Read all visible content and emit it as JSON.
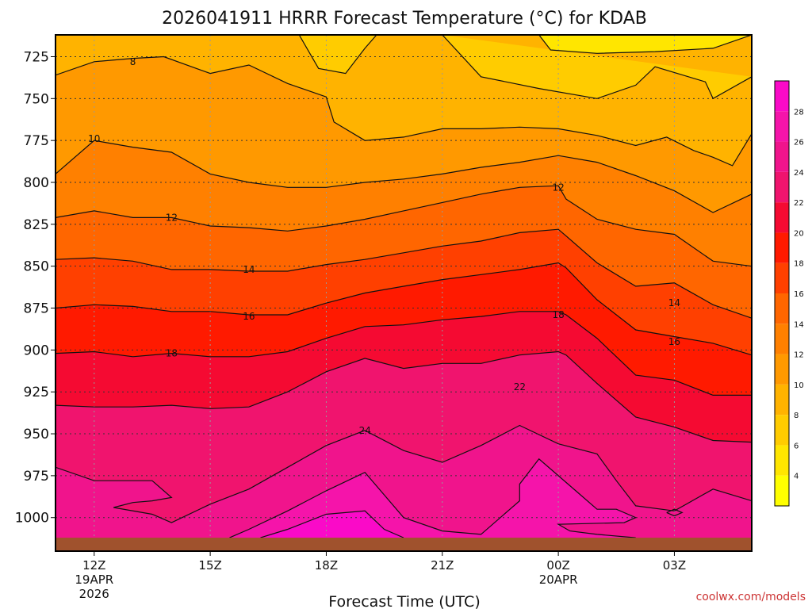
{
  "chart_data": {
    "type": "heatmap",
    "title": "2026041911 HRRR Forecast Temperature (°C) for KDAB",
    "xlabel": "Forecast Time (UTC)",
    "ylabel": "",
    "x_ticks": [
      {
        "hour": 0,
        "label": "12Z",
        "sub1": "19APR",
        "sub2": "2026"
      },
      {
        "hour": 3,
        "label": "15Z",
        "sub1": "",
        "sub2": ""
      },
      {
        "hour": 6,
        "label": "18Z",
        "sub1": "",
        "sub2": ""
      },
      {
        "hour": 9,
        "label": "21Z",
        "sub1": "",
        "sub2": ""
      },
      {
        "hour": 12,
        "label": "00Z",
        "sub1": "20APR",
        "sub2": ""
      },
      {
        "hour": 15,
        "label": "03Z",
        "sub1": "",
        "sub2": ""
      }
    ],
    "x_range_hours": [
      -1,
      17
    ],
    "y_ticks": [
      725,
      750,
      775,
      800,
      825,
      850,
      875,
      900,
      925,
      950,
      975,
      1000
    ],
    "y_range_hpa": [
      712,
      1020
    ],
    "surface_hpa": 1012,
    "colorbar_ticks": [
      4,
      6,
      8,
      10,
      12,
      14,
      16,
      18,
      20,
      22,
      24,
      26,
      28
    ],
    "color_levels": [
      {
        "min": 2,
        "max": 4,
        "color": "#ffff00"
      },
      {
        "min": 4,
        "max": 6,
        "color": "#ffe600"
      },
      {
        "min": 6,
        "max": 8,
        "color": "#ffcc00"
      },
      {
        "min": 8,
        "max": 10,
        "color": "#ffb300"
      },
      {
        "min": 10,
        "max": 12,
        "color": "#ff9900"
      },
      {
        "min": 12,
        "max": 14,
        "color": "#ff8000"
      },
      {
        "min": 14,
        "max": 16,
        "color": "#ff6600"
      },
      {
        "min": 16,
        "max": 18,
        "color": "#ff4000"
      },
      {
        "min": 18,
        "max": 20,
        "color": "#ff1a00"
      },
      {
        "min": 20,
        "max": 22,
        "color": "#f50a32"
      },
      {
        "min": 22,
        "max": 24,
        "color": "#f0146e"
      },
      {
        "min": 24,
        "max": 26,
        "color": "#f0148c"
      },
      {
        "min": 26,
        "max": 28,
        "color": "#f514aa"
      },
      {
        "min": 28,
        "max": 30,
        "color": "#fa0ac8"
      }
    ],
    "contour_labels": [
      {
        "value": "8",
        "hour": 1.0,
        "hpa": 728
      },
      {
        "value": "10",
        "hour": 0.0,
        "hpa": 774
      },
      {
        "value": "12",
        "hour": 2.0,
        "hpa": 821
      },
      {
        "value": "12",
        "hour": 12.0,
        "hpa": 803
      },
      {
        "value": "14",
        "hour": 4.0,
        "hpa": 852
      },
      {
        "value": "14",
        "hour": 15.0,
        "hpa": 872
      },
      {
        "value": "16",
        "hour": 4.0,
        "hpa": 880
      },
      {
        "value": "16",
        "hour": 15.0,
        "hpa": 895
      },
      {
        "value": "18",
        "hour": 2.0,
        "hpa": 902
      },
      {
        "value": "18",
        "hour": 12.0,
        "hpa": 879
      },
      {
        "value": "22",
        "hour": 11.0,
        "hpa": 922
      },
      {
        "value": "24",
        "hour": 7.0,
        "hpa": 948
      }
    ],
    "isotherms": [
      {
        "value": 6,
        "points": [
          [
            5.3,
            712
          ],
          [
            5.8,
            732
          ],
          [
            6.5,
            735
          ],
          [
            7.0,
            720
          ],
          [
            7.3,
            712
          ]
        ]
      },
      {
        "value": 4,
        "points": [
          [
            11.5,
            712
          ],
          [
            11.8,
            721
          ],
          [
            13.0,
            723
          ],
          [
            14.5,
            722
          ],
          [
            16.0,
            720
          ],
          [
            17.0,
            712
          ]
        ]
      },
      {
        "value": 6,
        "points": [
          [
            9.0,
            712
          ],
          [
            10.0,
            737
          ],
          [
            11.5,
            744
          ],
          [
            13.0,
            750
          ],
          [
            14.0,
            742
          ],
          [
            14.5,
            731
          ],
          [
            15.8,
            740
          ],
          [
            16.0,
            750
          ],
          [
            17.0,
            737
          ]
        ]
      },
      {
        "value": 8,
        "points": [
          [
            -1,
            736
          ],
          [
            0.0,
            728
          ],
          [
            1.0,
            726
          ],
          [
            1.8,
            725
          ],
          [
            3.0,
            735
          ],
          [
            4.0,
            730
          ],
          [
            5.0,
            741
          ],
          [
            6.0,
            749
          ],
          [
            6.2,
            764
          ],
          [
            7.0,
            775
          ],
          [
            8.0,
            773
          ],
          [
            9.0,
            768
          ],
          [
            10.0,
            768
          ],
          [
            11.0,
            767
          ],
          [
            12.0,
            768
          ],
          [
            13.0,
            772
          ],
          [
            14.0,
            778
          ],
          [
            14.8,
            773
          ],
          [
            15.5,
            781
          ],
          [
            16.0,
            785
          ],
          [
            16.5,
            790
          ],
          [
            17.0,
            771
          ]
        ]
      },
      {
        "value": 10,
        "points": [
          [
            -1,
            795
          ],
          [
            0.0,
            775
          ],
          [
            1.0,
            779
          ],
          [
            2.0,
            782
          ],
          [
            3.0,
            795
          ],
          [
            4.0,
            800
          ],
          [
            5.0,
            803
          ],
          [
            6.0,
            803
          ],
          [
            7.0,
            800
          ],
          [
            8.0,
            798
          ],
          [
            9.0,
            795
          ],
          [
            10.0,
            791
          ],
          [
            11.0,
            788
          ],
          [
            12.0,
            784
          ],
          [
            13.0,
            788
          ],
          [
            14.0,
            796
          ],
          [
            15.0,
            805
          ],
          [
            16.0,
            818
          ],
          [
            17.0,
            807
          ]
        ]
      },
      {
        "value": 12,
        "points": [
          [
            -1,
            821
          ],
          [
            0.0,
            817
          ],
          [
            1.0,
            821
          ],
          [
            2.0,
            821
          ],
          [
            3.0,
            826
          ],
          [
            4.0,
            827
          ],
          [
            5.0,
            829
          ],
          [
            6.0,
            826
          ],
          [
            7.0,
            822
          ],
          [
            8.0,
            817
          ],
          [
            9.0,
            812
          ],
          [
            10.0,
            807
          ],
          [
            11.0,
            803
          ],
          [
            12.0,
            802
          ],
          [
            12.2,
            810
          ],
          [
            13.0,
            822
          ],
          [
            14.0,
            828
          ],
          [
            15.0,
            831
          ],
          [
            16.0,
            847
          ],
          [
            17.0,
            850
          ]
        ]
      },
      {
        "value": 14,
        "points": [
          [
            -1,
            846
          ],
          [
            0.0,
            845
          ],
          [
            1.0,
            847
          ],
          [
            2.0,
            852
          ],
          [
            3.0,
            852
          ],
          [
            4.0,
            853
          ],
          [
            5.0,
            853
          ],
          [
            6.0,
            849
          ],
          [
            7.0,
            846
          ],
          [
            8.0,
            842
          ],
          [
            9.0,
            838
          ],
          [
            10.0,
            835
          ],
          [
            11.0,
            830
          ],
          [
            12.0,
            828
          ],
          [
            12.2,
            832
          ],
          [
            13.0,
            848
          ],
          [
            14.0,
            862
          ],
          [
            15.0,
            860
          ],
          [
            16.0,
            873
          ],
          [
            17.0,
            881
          ]
        ]
      },
      {
        "value": 16,
        "points": [
          [
            -1,
            875
          ],
          [
            0.0,
            873
          ],
          [
            1.0,
            874
          ],
          [
            2.0,
            877
          ],
          [
            3.0,
            877
          ],
          [
            4.0,
            879
          ],
          [
            5.0,
            879
          ],
          [
            6.0,
            872
          ],
          [
            7.0,
            866
          ],
          [
            8.0,
            862
          ],
          [
            9.0,
            858
          ],
          [
            10.0,
            855
          ],
          [
            11.0,
            852
          ],
          [
            12.0,
            848
          ],
          [
            12.2,
            851
          ],
          [
            13.0,
            870
          ],
          [
            14.0,
            888
          ],
          [
            15.0,
            892
          ],
          [
            16.0,
            896
          ],
          [
            17.0,
            903
          ]
        ]
      },
      {
        "value": 18,
        "points": [
          [
            -1,
            902
          ],
          [
            0.0,
            901
          ],
          [
            1.0,
            904
          ],
          [
            2.0,
            902
          ],
          [
            3.0,
            904
          ],
          [
            4.0,
            904
          ],
          [
            5.0,
            901
          ],
          [
            6.0,
            893
          ],
          [
            7.0,
            886
          ],
          [
            8.0,
            885
          ],
          [
            9.0,
            882
          ],
          [
            10.0,
            880
          ],
          [
            11.0,
            877
          ],
          [
            12.0,
            877
          ],
          [
            12.2,
            879
          ],
          [
            13.0,
            893
          ],
          [
            14.0,
            915
          ],
          [
            15.0,
            918
          ],
          [
            16.0,
            927
          ],
          [
            17.0,
            927
          ]
        ]
      },
      {
        "value": 20,
        "points": [
          [
            -1,
            933
          ],
          [
            0.0,
            934
          ],
          [
            1.0,
            934
          ],
          [
            2.0,
            933
          ],
          [
            3.0,
            935
          ],
          [
            4.0,
            934
          ],
          [
            5.0,
            925
          ],
          [
            6.0,
            913
          ],
          [
            7.0,
            905
          ],
          [
            8.0,
            911
          ],
          [
            9.0,
            908
          ],
          [
            10.0,
            908
          ],
          [
            11.0,
            903
          ],
          [
            12.0,
            901
          ],
          [
            12.2,
            903
          ],
          [
            13.0,
            920
          ],
          [
            14.0,
            940
          ],
          [
            15.0,
            946
          ],
          [
            16.0,
            954
          ],
          [
            17.0,
            955
          ]
        ]
      },
      {
        "value": 22,
        "points": [
          [
            -1,
            970
          ],
          [
            0.0,
            978
          ],
          [
            1.0,
            978
          ],
          [
            1.5,
            978
          ],
          [
            2.0,
            988
          ],
          [
            1.5,
            990
          ],
          [
            1.0,
            991
          ],
          [
            0.5,
            994
          ],
          [
            1.5,
            998
          ],
          [
            2.0,
            1003
          ],
          [
            3.0,
            992
          ],
          [
            4.0,
            983
          ],
          [
            5.0,
            970
          ],
          [
            6.0,
            957
          ],
          [
            7.0,
            948
          ],
          [
            8.0,
            960
          ],
          [
            9.0,
            967
          ],
          [
            10.0,
            957
          ],
          [
            11.0,
            945
          ],
          [
            12.0,
            956
          ],
          [
            13.0,
            962
          ],
          [
            13.5,
            978
          ],
          [
            14.0,
            993
          ],
          [
            15.0,
            996
          ],
          [
            16.0,
            983
          ],
          [
            17.0,
            990
          ]
        ]
      },
      {
        "value": 24,
        "points": [
          [
            3.5,
            1012
          ],
          [
            4.0,
            1007
          ],
          [
            5.0,
            996
          ],
          [
            6.0,
            984
          ],
          [
            7.0,
            973
          ],
          [
            8.0,
            1000
          ],
          [
            9.0,
            1008
          ],
          [
            10.0,
            1010
          ],
          [
            11.0,
            990
          ],
          [
            11.0,
            980
          ],
          [
            11.5,
            965
          ],
          [
            12.5,
            985
          ],
          [
            13.0,
            995
          ],
          [
            13.5,
            995
          ],
          [
            14.0,
            1000
          ],
          [
            13.7,
            1003
          ],
          [
            12.0,
            1004
          ],
          [
            12.3,
            1008
          ],
          [
            13.0,
            1010
          ],
          [
            14.0,
            1012
          ]
        ]
      },
      {
        "value": 26,
        "points": [
          [
            4.3,
            1012
          ],
          [
            5.0,
            1007
          ],
          [
            6.0,
            998
          ],
          [
            7.0,
            996
          ],
          [
            7.5,
            1007
          ],
          [
            8.0,
            1012
          ]
        ]
      },
      {
        "value": 22,
        "points": [
          [
            14.8,
            997
          ],
          [
            15.0,
            995
          ],
          [
            15.2,
            997
          ],
          [
            15.0,
            999
          ],
          [
            14.8,
            997
          ]
        ]
      }
    ],
    "band_fill_order": [
      {
        "upper_index": -1,
        "lower_index": 3,
        "color": "#ffb300"
      },
      {
        "upper_index": 3,
        "lower_index": 4,
        "color": "#ff9900"
      },
      {
        "upper_index": 4,
        "lower_index": 5,
        "color": "#ff8000"
      },
      {
        "upper_index": 5,
        "lower_index": 6,
        "color": "#ff6600"
      },
      {
        "upper_index": 6,
        "lower_index": 7,
        "color": "#ff4000"
      },
      {
        "upper_index": 7,
        "lower_index": 8,
        "color": "#ff1a00"
      },
      {
        "upper_index": 8,
        "lower_index": 9,
        "color": "#f50a32"
      },
      {
        "upper_index": 9,
        "lower_index": 10,
        "color": "#f0146e"
      },
      {
        "upper_index": 10,
        "lower_index": -2,
        "color": "#f0148c"
      }
    ],
    "closed_fills": [
      {
        "index": 0,
        "color": "#ffcc00"
      },
      {
        "index": 2,
        "color": "#ffcc00"
      },
      {
        "index": 1,
        "color": "#ffe600"
      },
      {
        "index": 11,
        "color": "#f514aa"
      },
      {
        "index": 12,
        "color": "#fa0ac8"
      }
    ],
    "ground_color": "#a0522d"
  },
  "footer": {
    "credit": "coolwx.com/models"
  }
}
